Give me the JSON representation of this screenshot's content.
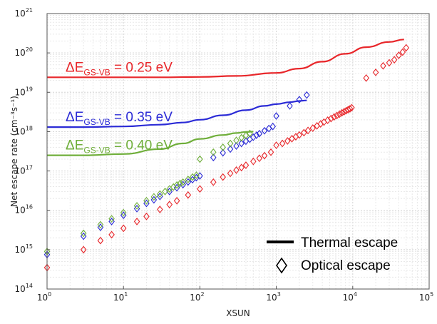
{
  "chart_data": {
    "type": "scatter",
    "title": "",
    "xlabel": "XSUN",
    "ylabel": "Net escape rate (cm⁻³s⁻¹)",
    "x_scale": "log",
    "y_scale": "log",
    "xlim": [
      1,
      100000
    ],
    "ylim": [
      100000000000000.0,
      1e+21
    ],
    "x_ticks": [
      {
        "value": 1,
        "base": "10",
        "exp": "0"
      },
      {
        "value": 10,
        "base": "10",
        "exp": "1"
      },
      {
        "value": 100,
        "base": "10",
        "exp": "2"
      },
      {
        "value": 1000,
        "base": "10",
        "exp": "3"
      },
      {
        "value": 10000,
        "base": "10",
        "exp": "4"
      },
      {
        "value": 100000,
        "base": "10",
        "exp": "5"
      }
    ],
    "y_ticks": [
      {
        "value": 100000000000000.0,
        "base": "10",
        "exp": "14"
      },
      {
        "value": 1000000000000000.0,
        "base": "10",
        "exp": "15"
      },
      {
        "value": 1e+16,
        "base": "10",
        "exp": "16"
      },
      {
        "value": 1e+17,
        "base": "10",
        "exp": "17"
      },
      {
        "value": 1e+18,
        "base": "10",
        "exp": "18"
      },
      {
        "value": 1e+19,
        "base": "10",
        "exp": "19"
      },
      {
        "value": 1e+20,
        "base": "10",
        "exp": "20"
      },
      {
        "value": 1e+21,
        "base": "10",
        "exp": "21"
      }
    ],
    "grid": true,
    "legend": {
      "placement": "bottom-right",
      "entries": [
        {
          "label": "Thermal escape",
          "marker": "line"
        },
        {
          "label": "Optical escape",
          "marker": "diamond"
        }
      ]
    },
    "series": [
      {
        "color": "#e8262a",
        "label_main": "ΔE",
        "label_sub": "GS-VB",
        "label_rest": " = 0.25 eV",
        "thermal": {
          "x": [
            1,
            3,
            10,
            30,
            100,
            300,
            1000,
            2000,
            4000,
            8000,
            15000,
            30000,
            47000
          ],
          "y": [
            2.4e+19,
            2.4e+19,
            2.4e+19,
            2.4e+19,
            2.45e+19,
            2.6e+19,
            3.1e+19,
            4e+19,
            6e+19,
            9.5e+19,
            1.4e+20,
            1.9e+20,
            2.2e+20
          ]
        },
        "optical": {
          "x": [
            1,
            3,
            5,
            7,
            10,
            15,
            20,
            30,
            40,
            50,
            70,
            100,
            150,
            200,
            250,
            300,
            350,
            400,
            500,
            600,
            700,
            850,
            1000,
            1200,
            1400,
            1600,
            1800,
            2000,
            2300,
            2600,
            3000,
            3400,
            3800,
            4200,
            4700,
            5200,
            5700,
            6200,
            6700,
            7200,
            7700,
            8200,
            8700,
            9200,
            9700,
            15000,
            20000,
            25000,
            30000,
            35000,
            40000,
            45000,
            50000
          ],
          "y": [
            350000000000000.0,
            1000000000000000.0,
            1700000000000000.0,
            2400000000000000.0,
            3500000000000000.0,
            5200000000000000.0,
            7000000000000000.0,
            1.05e+16,
            1.4e+16,
            1.75e+16,
            2.45e+16,
            3.5e+16,
            5.2e+16,
            7e+16,
            8.7e+16,
            1.05e+17,
            1.22e+17,
            1.4e+17,
            1.75e+17,
            2.1e+17,
            2.45e+17,
            3e+17,
            4.5e+17,
            5e+17,
            5.8e+17,
            6.6e+17,
            7.4e+17,
            8.2e+17,
            9.4e+17,
            1.07e+18,
            1.23e+18,
            1.4e+18,
            1.57e+18,
            1.74e+18,
            1.95e+18,
            2.15e+18,
            2.36e+18,
            2.57e+18,
            2.78e+18,
            3e+18,
            3.2e+18,
            3.4e+18,
            3.6e+18,
            3.8e+18,
            4.05e+18,
            2.3e+19,
            3.2e+19,
            4.7e+19,
            5.6e+19,
            6.7e+19,
            8.7e+19,
            1.05e+20,
            1.35e+20
          ]
        }
      },
      {
        "color": "#2b2bd6",
        "label_main": "ΔE",
        "label_sub": "GS-VB",
        "label_rest": " = 0.35 eV",
        "thermal": {
          "x": [
            1,
            3,
            10,
            30,
            60,
            100,
            200,
            400,
            700,
            1000,
            1500,
            2000,
            2500
          ],
          "y": [
            1.3e+18,
            1.3e+18,
            1.35e+18,
            1.5e+18,
            1.7e+18,
            2e+18,
            2.6e+18,
            3.5e+18,
            4.5e+18,
            5e+18,
            5.6e+18,
            6e+18,
            6.2e+18
          ]
        },
        "optical": {
          "x": [
            1,
            3,
            5,
            7,
            10,
            15,
            20,
            25,
            30,
            40,
            50,
            60,
            70,
            80,
            90,
            100,
            150,
            200,
            250,
            300,
            350,
            400,
            450,
            500,
            550,
            600,
            700,
            800,
            900,
            1000,
            1500,
            2000,
            2500
          ],
          "y": [
            750000000000000.0,
            2200000000000000.0,
            3700000000000000.0,
            5200000000000000.0,
            7500000000000000.0,
            1.1e+16,
            1.5e+16,
            1.85e+16,
            2.25e+16,
            3e+16,
            3.75e+16,
            4.5e+16,
            5.25e+16,
            6e+16,
            6.75e+16,
            7.5e+16,
            2.2e+17,
            2.9e+17,
            3.6e+17,
            4.3e+17,
            5e+17,
            5.7e+17,
            6.4e+17,
            7.2e+17,
            8.1e+17,
            8.9e+17,
            1.05e+18,
            1.2e+18,
            1.35e+18,
            2.5e+18,
            4.5e+18,
            6.5e+18,
            8.5e+18
          ]
        }
      },
      {
        "color": "#6fae3a",
        "label_main": "ΔE",
        "label_sub": "GS-VB",
        "label_rest": " = 0.40 eV",
        "thermal": {
          "x": [
            1,
            3,
            10,
            30,
            60,
            100,
            200,
            300,
            400,
            500
          ],
          "y": [
            2.5e+17,
            2.5e+17,
            2.7e+17,
            3.6e+17,
            5e+17,
            6.5e+17,
            8.2e+17,
            9.2e+17,
            9.8e+17,
            1e+18
          ]
        },
        "optical": {
          "x": [
            1,
            3,
            5,
            7,
            10,
            15,
            20,
            25,
            30,
            35,
            40,
            45,
            50,
            55,
            60,
            70,
            80,
            90,
            100,
            150,
            200,
            250,
            300,
            350,
            400,
            450
          ],
          "y": [
            900000000000000.0,
            2600000000000000.0,
            4300000000000000.0,
            6100000000000000.0,
            8700000000000000.0,
            1.3e+16,
            1.75e+16,
            2.2e+16,
            2.6e+16,
            3e+16,
            3.5e+16,
            3.9e+16,
            4.4e+16,
            4.8e+16,
            5.2e+16,
            6.1e+16,
            7e+16,
            7.8e+16,
            2e+17,
            3e+17,
            4e+17,
            5e+17,
            6e+17,
            7e+17,
            8e+17,
            9e+17
          ]
        }
      }
    ]
  }
}
